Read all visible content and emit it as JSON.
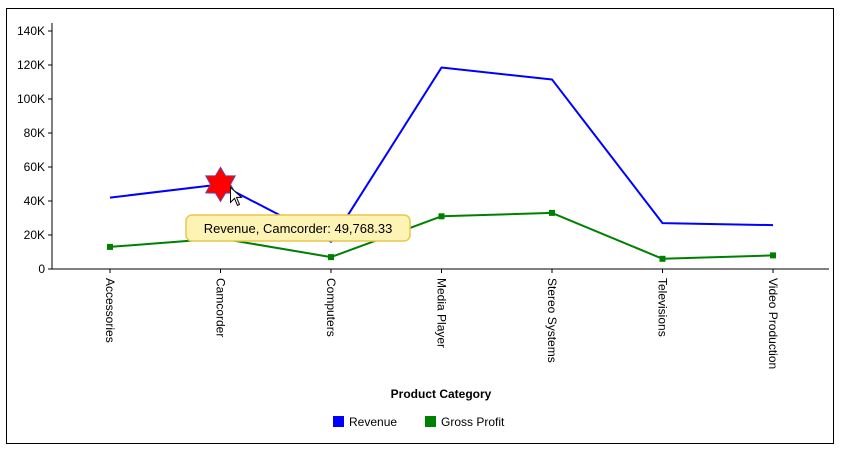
{
  "chart_data": {
    "type": "line",
    "categories": [
      "Accessories",
      "Camcorder",
      "Computers",
      "Media Player",
      "Stereo Systems",
      "Televisions",
      "Video Production"
    ],
    "series": [
      {
        "name": "Revenue",
        "color": "#0000ff",
        "marker": "none",
        "values": [
          42000,
          49768.33,
          16000,
          118500,
          111500,
          27000,
          25800
        ]
      },
      {
        "name": "Gross Profit",
        "color": "#008000",
        "marker": "square",
        "values": [
          13000,
          18000,
          7000,
          31000,
          33000,
          6000,
          8000
        ]
      }
    ],
    "xlabel": "Product Category",
    "ylabel": "",
    "ylim": [
      0,
      140000
    ],
    "yticks": [
      {
        "value": 0,
        "label": "0"
      },
      {
        "value": 20000,
        "label": "20K"
      },
      {
        "value": 40000,
        "label": "40K"
      },
      {
        "value": 60000,
        "label": "60K"
      },
      {
        "value": 80000,
        "label": "80K"
      },
      {
        "value": 100000,
        "label": "100K"
      },
      {
        "value": 120000,
        "label": "120K"
      },
      {
        "value": 140000,
        "label": "140K"
      }
    ],
    "x_tick_rotation": "vertical",
    "grid": false,
    "legend_position": "bottom-center",
    "highlight": {
      "series": "Revenue",
      "category": "Camcorder",
      "marker": "red-six-point-star",
      "color": "#ff0000",
      "tooltip": "Revenue, Camcorder: 49,768.33"
    }
  }
}
